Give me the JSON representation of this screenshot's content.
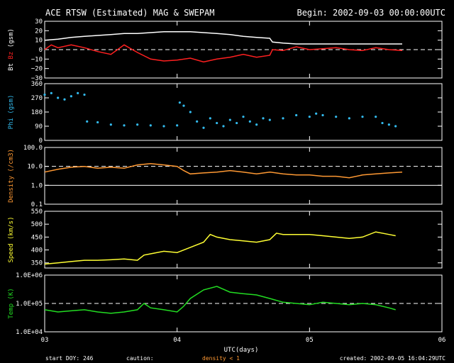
{
  "header": {
    "title": "ACE RTSW (Estimated) MAG & SWEPAM",
    "begin": "Begin: 2002-09-03 00:00:00UTC"
  },
  "footer": {
    "start_doy": "start DOY: 246",
    "caution": "caution:",
    "density_note": "density < 1",
    "created": "created: 2002-09-05 16:04:29UTC",
    "xlabel": "UTC(days)"
  },
  "colors": {
    "bt": "#ffffff",
    "bz": "#ff2020",
    "phi": "#33bbee",
    "density": "#ff9933",
    "speed": "#ffff33",
    "temp": "#22dd22",
    "density_note": "#ff9933"
  },
  "chart_data": {
    "type": "line",
    "x_range": [
      3,
      6
    ],
    "x_ticks": [
      {
        "v": 3,
        "label": "03"
      },
      {
        "v": 4,
        "label": "04"
      },
      {
        "v": 5,
        "label": "05"
      },
      {
        "v": 6,
        "label": "06"
      }
    ],
    "panels": [
      {
        "id": "mag",
        "ylabel_parts": [
          {
            "text": "Bt",
            "color": "#ffffff"
          },
          {
            "text": " Bz",
            "color": "#ff2020"
          },
          {
            "text": " (gsm)",
            "color": "#ffffff"
          }
        ],
        "ylim": [
          -30,
          30
        ],
        "scale": "linear",
        "ticks": [
          {
            "v": 30,
            "label": "30"
          },
          {
            "v": 20,
            "label": "20"
          },
          {
            "v": 10,
            "label": "10"
          },
          {
            "v": 0,
            "label": "0"
          },
          {
            "v": -10,
            "label": "−10"
          },
          {
            "v": -20,
            "label": "−20"
          },
          {
            "v": -30,
            "label": "−30"
          }
        ],
        "dashed": [
          0
        ],
        "series": [
          {
            "name": "Bt",
            "color": "#ffffff",
            "style": "line",
            "x": [
              3.0,
              3.1,
              3.2,
              3.3,
              3.4,
              3.5,
              3.6,
              3.7,
              3.8,
              3.9,
              4.0,
              4.1,
              4.2,
              4.3,
              4.4,
              4.5,
              4.6,
              4.7,
              4.72,
              4.8,
              4.9,
              5.0,
              5.1,
              5.2,
              5.3,
              5.4,
              5.5,
              5.6,
              5.7
            ],
            "y": [
              10,
              11,
              13,
              14,
              15,
              16,
              17,
              17,
              18,
              19,
              19,
              19,
              18,
              17,
              16,
              14,
              13,
              12,
              8,
              7,
              6,
              6,
              6,
              6,
              6,
              6,
              6,
              6,
              6
            ]
          },
          {
            "name": "Bz",
            "color": "#ff2020",
            "style": "line",
            "x": [
              3.0,
              3.05,
              3.1,
              3.2,
              3.3,
              3.4,
              3.5,
              3.6,
              3.7,
              3.8,
              3.9,
              4.0,
              4.1,
              4.2,
              4.3,
              4.4,
              4.5,
              4.6,
              4.7,
              4.72,
              4.8,
              4.9,
              5.0,
              5.1,
              5.2,
              5.3,
              5.4,
              5.5,
              5.6,
              5.7
            ],
            "y": [
              0,
              5,
              2,
              5,
              2,
              -2,
              -5,
              5,
              -3,
              -10,
              -12,
              -11,
              -9,
              -13,
              -10,
              -8,
              -5,
              -8,
              -6,
              0,
              -1,
              3,
              0,
              1,
              2,
              0,
              -1,
              2,
              0,
              -1
            ]
          }
        ]
      },
      {
        "id": "phi",
        "ylabel_parts": [
          {
            "text": "Phi (gsm)",
            "color": "#33bbee"
          }
        ],
        "ylim": [
          0,
          360
        ],
        "scale": "linear",
        "ticks": [
          {
            "v": 360,
            "label": "360"
          },
          {
            "v": 270,
            "label": "270"
          },
          {
            "v": 180,
            "label": "180"
          },
          {
            "v": 90,
            "label": "90"
          },
          {
            "v": 0,
            "label": "0"
          }
        ],
        "dashed": [],
        "series": [
          {
            "name": "Phi",
            "color": "#33bbee",
            "style": "scatter",
            "x": [
              3.0,
              3.05,
              3.1,
              3.15,
              3.2,
              3.25,
              3.3,
              3.32,
              3.4,
              3.5,
              3.6,
              3.7,
              3.8,
              3.9,
              4.0,
              4.02,
              4.05,
              4.1,
              4.15,
              4.2,
              4.25,
              4.3,
              4.35,
              4.4,
              4.45,
              4.5,
              4.55,
              4.6,
              4.65,
              4.7,
              4.8,
              4.9,
              5.0,
              5.05,
              5.1,
              5.2,
              5.3,
              5.4,
              5.5,
              5.55,
              5.6,
              5.65
            ],
            "y": [
              290,
              300,
              270,
              260,
              280,
              300,
              290,
              120,
              115,
              100,
              95,
              100,
              95,
              90,
              95,
              240,
              220,
              180,
              120,
              80,
              140,
              110,
              90,
              130,
              110,
              150,
              120,
              100,
              140,
              130,
              140,
              160,
              150,
              170,
              160,
              150,
              140,
              150,
              150,
              110,
              100,
              90
            ]
          }
        ]
      },
      {
        "id": "density",
        "ylabel_parts": [
          {
            "text": "Density (/cm3)",
            "color": "#ff9933"
          }
        ],
        "ylim": [
          0.1,
          100
        ],
        "scale": "log",
        "ticks": [
          {
            "v": 100,
            "label": "100.0"
          },
          {
            "v": 10,
            "label": "10.0"
          },
          {
            "v": 1,
            "label": "1.0"
          },
          {
            "v": 0.1,
            "label": "0.1"
          }
        ],
        "dashed": [
          10
        ],
        "solid": [
          1
        ],
        "series": [
          {
            "name": "Density",
            "color": "#ff9933",
            "style": "line",
            "x": [
              3.0,
              3.1,
              3.2,
              3.3,
              3.4,
              3.5,
              3.6,
              3.7,
              3.8,
              3.9,
              4.0,
              4.05,
              4.1,
              4.2,
              4.3,
              4.4,
              4.5,
              4.6,
              4.7,
              4.8,
              4.9,
              5.0,
              5.1,
              5.2,
              5.3,
              5.4,
              5.5,
              5.6,
              5.7
            ],
            "y": [
              5,
              7,
              9,
              10,
              8,
              9,
              8,
              12,
              14,
              12,
              10,
              6,
              4,
              4.5,
              5,
              6,
              5,
              4,
              5,
              4,
              3.5,
              3.5,
              3,
              3,
              2.5,
              3.5,
              4,
              4.5,
              5
            ]
          }
        ]
      },
      {
        "id": "speed",
        "ylabel_parts": [
          {
            "text": "Speed (km/s)",
            "color": "#ffff33"
          }
        ],
        "ylim": [
          330,
          550
        ],
        "scale": "linear",
        "ticks": [
          {
            "v": 550,
            "label": "550"
          },
          {
            "v": 500,
            "label": "500"
          },
          {
            "v": 450,
            "label": "450"
          },
          {
            "v": 400,
            "label": "400"
          },
          {
            "v": 350,
            "label": "350"
          }
        ],
        "dashed": [],
        "series": [
          {
            "name": "Speed",
            "color": "#ffff33",
            "style": "line",
            "x": [
              3.0,
              3.1,
              3.2,
              3.3,
              3.4,
              3.5,
              3.6,
              3.7,
              3.75,
              3.8,
              3.9,
              4.0,
              4.1,
              4.2,
              4.25,
              4.3,
              4.4,
              4.5,
              4.6,
              4.7,
              4.75,
              4.8,
              4.9,
              5.0,
              5.1,
              5.2,
              5.3,
              5.4,
              5.5,
              5.6,
              5.65
            ],
            "y": [
              345,
              350,
              355,
              360,
              360,
              362,
              365,
              360,
              380,
              385,
              395,
              390,
              410,
              430,
              460,
              450,
              440,
              435,
              430,
              440,
              465,
              460,
              460,
              460,
              455,
              450,
              445,
              450,
              470,
              460,
              455
            ]
          }
        ]
      },
      {
        "id": "temp",
        "ylabel_parts": [
          {
            "text": "Temp (K)",
            "color": "#22dd22"
          }
        ],
        "ylim": [
          10000,
          1000000
        ],
        "scale": "log",
        "ticks": [
          {
            "v": 1000000,
            "label": "1.0E+06"
          },
          {
            "v": 100000,
            "label": "1.0E+05"
          },
          {
            "v": 10000,
            "label": "1.0E+04"
          }
        ],
        "dashed": [
          100000
        ],
        "series": [
          {
            "name": "Temp",
            "color": "#22dd22",
            "style": "line",
            "x": [
              3.0,
              3.1,
              3.2,
              3.3,
              3.4,
              3.5,
              3.6,
              3.7,
              3.75,
              3.8,
              3.9,
              4.0,
              4.05,
              4.1,
              4.2,
              4.3,
              4.4,
              4.5,
              4.6,
              4.7,
              4.8,
              4.9,
              5.0,
              5.1,
              5.2,
              5.3,
              5.4,
              5.5,
              5.6,
              5.65
            ],
            "y": [
              60000,
              50000,
              55000,
              60000,
              50000,
              45000,
              50000,
              60000,
              100000,
              70000,
              60000,
              50000,
              80000,
              150000,
              300000,
              400000,
              250000,
              220000,
              200000,
              150000,
              110000,
              100000,
              90000,
              110000,
              100000,
              90000,
              100000,
              90000,
              70000,
              60000
            ]
          }
        ]
      }
    ]
  }
}
